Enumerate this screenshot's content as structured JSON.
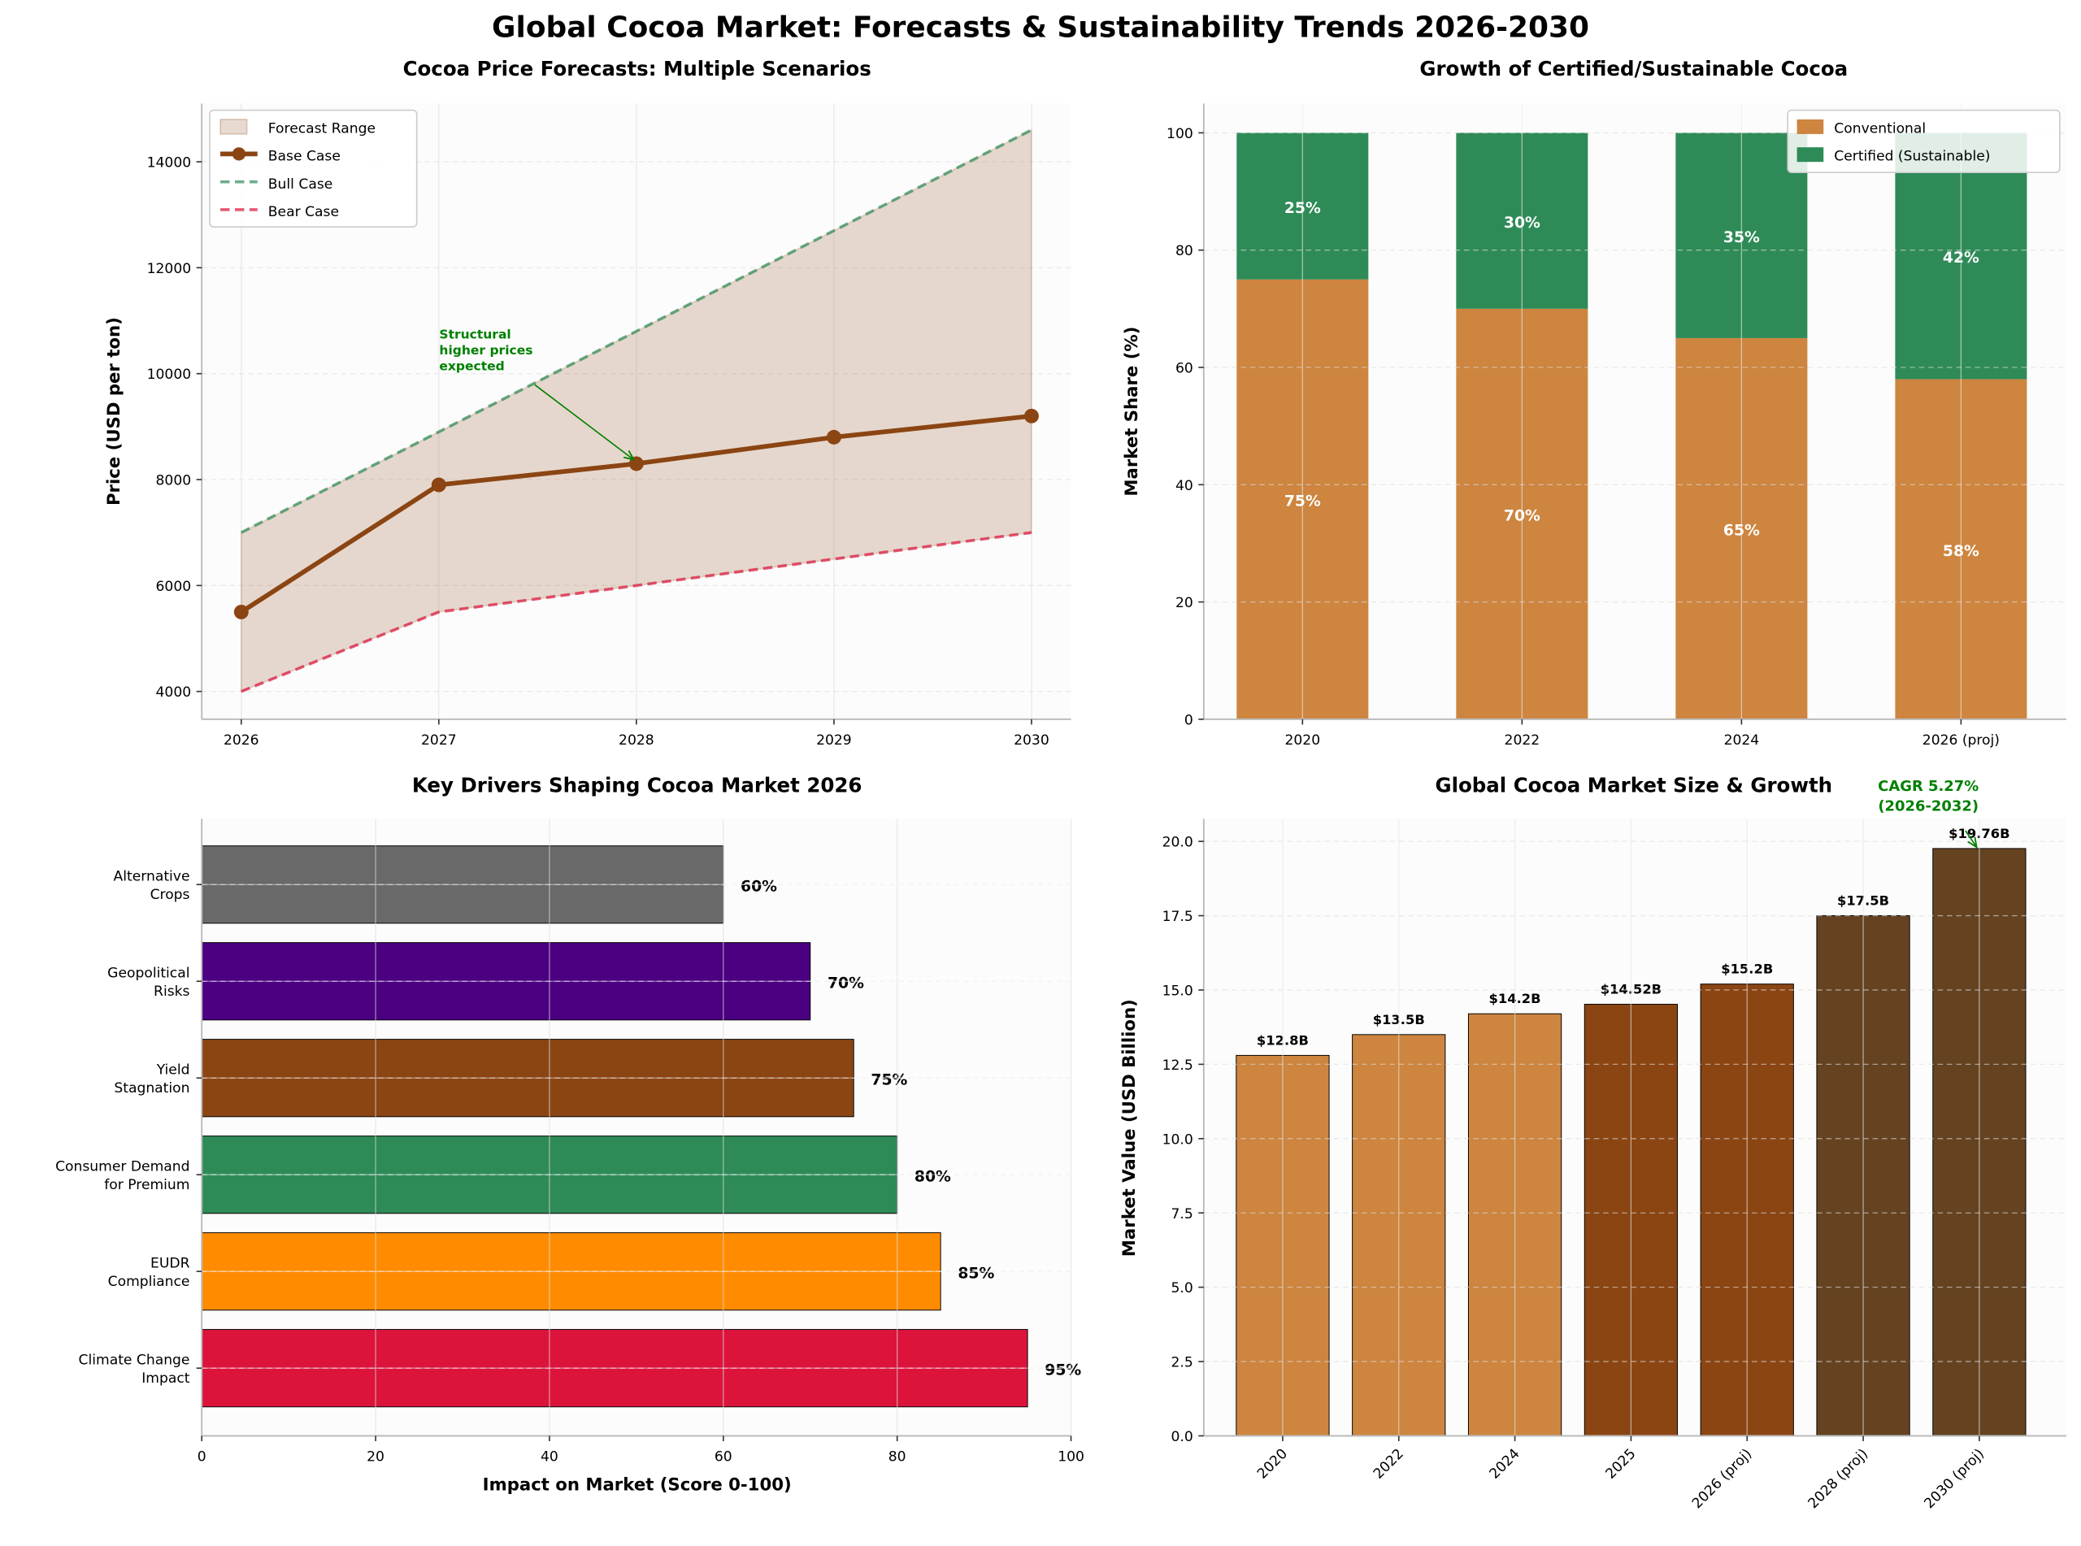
{
  "figure_title": "Global Cocoa Market: Forecasts & Sustainability Trends 2026-2030",
  "chart_data": [
    {
      "type": "line",
      "title": "Cocoa Price Forecasts: Multiple Scenarios",
      "xlabel": "",
      "ylabel": "Price (USD per ton)",
      "x": [
        2026,
        2027,
        2028,
        2029,
        2030
      ],
      "xlim": [
        2025.8,
        2030.2
      ],
      "ylim": [
        3475,
        15100
      ],
      "xticks": [
        "2026",
        "2027",
        "2028",
        "2029",
        "2030"
      ],
      "yticks": [
        4000,
        6000,
        8000,
        10000,
        12000,
        14000
      ],
      "grid": true,
      "legend_position": "upper-left",
      "range_label": "Forecast Range",
      "range_color": "#8B4513",
      "series": [
        {
          "name": "Base Case",
          "values": [
            5500,
            7900,
            8300,
            8800,
            9200
          ],
          "color": "#8B4513",
          "style": "solid-markers"
        },
        {
          "name": "Bull Case",
          "values": [
            7000,
            8900,
            10800,
            12700,
            14600
          ],
          "color": "#2E8B57",
          "style": "dashed"
        },
        {
          "name": "Bear Case",
          "values": [
            4000,
            5500,
            6000,
            6500,
            7000
          ],
          "color": "#DC143C",
          "style": "dashed"
        }
      ],
      "annotation": {
        "lines": [
          "Structural",
          "higher prices",
          "expected"
        ],
        "target_x": 2028,
        "target_y": 8300,
        "color": "#008000"
      }
    },
    {
      "type": "bar",
      "stacked": true,
      "title": "Growth of Certified/Sustainable Cocoa",
      "xlabel": "",
      "ylabel": "Market Share (%)",
      "categories": [
        "2020",
        "2022",
        "2024",
        "2026 (proj)"
      ],
      "ylim": [
        0,
        105
      ],
      "yticks": [
        0,
        20,
        40,
        60,
        80,
        100
      ],
      "grid": true,
      "legend_position": "upper-right",
      "series": [
        {
          "name": "Conventional",
          "values": [
            75,
            70,
            65,
            58
          ],
          "labels": [
            "75%",
            "70%",
            "65%",
            "58%"
          ],
          "color": "#CD853F"
        },
        {
          "name": "Certified (Sustainable)",
          "values": [
            25,
            30,
            35,
            42
          ],
          "labels": [
            "25%",
            "30%",
            "35%",
            "42%"
          ],
          "color": "#2E8B57"
        }
      ]
    },
    {
      "type": "bar",
      "orientation": "horizontal",
      "title": "Key Drivers Shaping Cocoa Market 2026",
      "xlabel": "Impact on Market (Score 0-100)",
      "ylabel": "",
      "categories": [
        [
          "Climate Change",
          "Impact"
        ],
        [
          "EUDR",
          "Compliance"
        ],
        [
          "Consumer Demand",
          "for Premium"
        ],
        [
          "Yield",
          "Stagnation"
        ],
        [
          "Geopolitical",
          "Risks"
        ],
        [
          "Alternative",
          "Crops"
        ]
      ],
      "values": [
        95,
        85,
        80,
        75,
        70,
        60
      ],
      "labels": [
        "95%",
        "85%",
        "80%",
        "75%",
        "70%",
        "60%"
      ],
      "colors": [
        "#DC143C",
        "#FF8C00",
        "#2E8B57",
        "#8B4513",
        "#4B0082",
        "#696969"
      ],
      "xlim": [
        0,
        100
      ],
      "xticks": [
        0,
        20,
        40,
        60,
        80,
        100
      ],
      "grid": true
    },
    {
      "type": "bar",
      "title": "Global Cocoa Market Size & Growth",
      "xlabel": "",
      "ylabel": "Market Value (USD Billion)",
      "categories": [
        "2020",
        "2022",
        "2024",
        "2025",
        "2026 (proj)",
        "2028 (proj)",
        "2030 (proj)"
      ],
      "values": [
        12.8,
        13.5,
        14.2,
        14.52,
        15.2,
        17.5,
        19.76
      ],
      "labels": [
        "$12.8B",
        "$13.5B",
        "$14.2B",
        "$14.52B",
        "$15.2B",
        "$17.5B",
        "$19.76B"
      ],
      "colors": [
        "#CD853F",
        "#CD853F",
        "#CD853F",
        "#8B4513",
        "#8B4513",
        "#654321",
        "#654321"
      ],
      "ylim": [
        0,
        20.76
      ],
      "yticks": [
        "0.0",
        "2.5",
        "5.0",
        "7.5",
        "10.0",
        "12.5",
        "15.0",
        "17.5",
        "20.0"
      ],
      "grid": true,
      "annotation": {
        "lines": [
          "CAGR 5.27%",
          "(2026-2032)"
        ],
        "color": "#008000"
      }
    }
  ]
}
